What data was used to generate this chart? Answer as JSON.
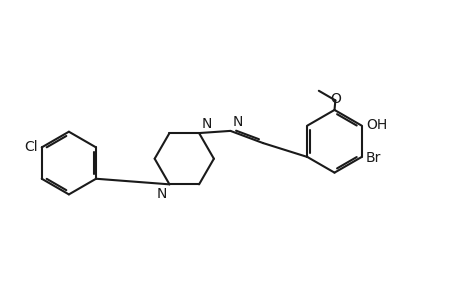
{
  "bg_color": "#ffffff",
  "line_color": "#1a1a1a",
  "line_width": 1.5,
  "font_size": 10,
  "fig_width": 4.6,
  "fig_height": 3.0,
  "dpi": 100,
  "xlim": [
    0.0,
    10.5
  ],
  "ylim": [
    0.8,
    5.8
  ]
}
